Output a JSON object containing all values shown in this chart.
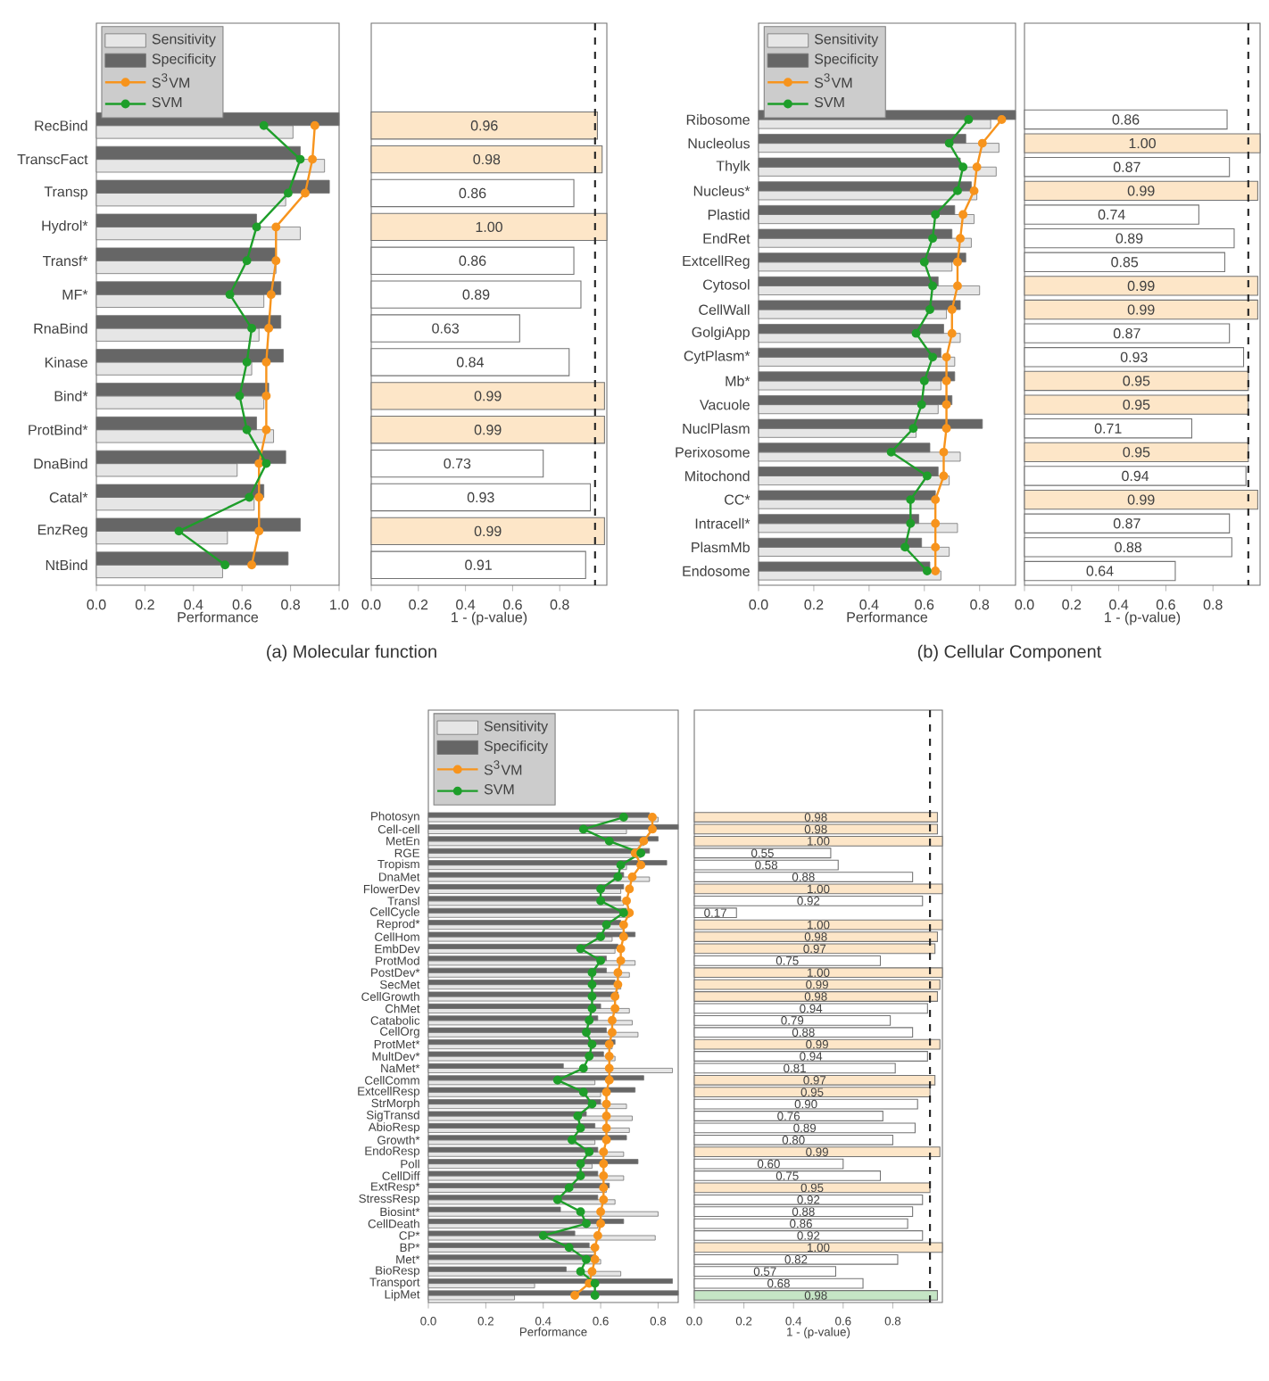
{
  "chart_data": [
    {
      "type": "bar",
      "orientation": "horizontal",
      "title": "(a) Molecular function",
      "xlabel": "Performance",
      "legend": "top left",
      "marker": "circle",
      "categories": [
        "RecBind",
        "TranscFact",
        "Transp",
        "Hydrol*",
        "Transf*",
        "MF*",
        "RnaBind",
        "Kinase",
        "Bind*",
        "ProtBind*",
        "DnaBind",
        "Catal*",
        "EnzReg",
        "NtBind"
      ],
      "xlim": [
        0,
        1.0
      ],
      "xticks": [
        {
          "value": 0,
          "label": "0.0"
        },
        {
          "value": 0.2,
          "label": "0.2"
        },
        {
          "value": 0.4,
          "label": "0.4"
        },
        {
          "value": 0.6,
          "label": "0.6"
        },
        {
          "value": 0.8,
          "label": "0.8"
        },
        {
          "value": 1.0,
          "label": "1.0"
        }
      ],
      "series": [
        {
          "name": "Sensitivity",
          "type": "bar",
          "color": "#e6e6e6",
          "values": [
            0.81,
            0.94,
            0.78,
            0.84,
            0.74,
            0.69,
            0.67,
            0.64,
            0.69,
            0.73,
            0.58,
            0.65,
            0.54,
            0.52
          ]
        },
        {
          "name": "Specificity",
          "type": "bar",
          "color": "#666666",
          "values": [
            1.0,
            0.84,
            0.96,
            0.66,
            0.74,
            0.76,
            0.76,
            0.77,
            0.71,
            0.66,
            0.78,
            0.69,
            0.84,
            0.79
          ]
        },
        {
          "name": "S$^{3}$VM",
          "type": "line",
          "color": "#f7941d",
          "values": [
            0.9,
            0.89,
            0.86,
            0.74,
            0.74,
            0.72,
            0.71,
            0.7,
            0.7,
            0.7,
            0.67,
            0.67,
            0.67,
            0.64
          ]
        },
        {
          "name": "SVM",
          "type": "line",
          "color": "#1e9e2a",
          "values": [
            0.69,
            0.84,
            0.79,
            0.66,
            0.62,
            0.55,
            0.64,
            0.62,
            0.59,
            0.62,
            0.7,
            0.63,
            0.34,
            0.53
          ]
        }
      ]
    },
    {
      "type": "bar",
      "orientation": "horizontal",
      "xlabel": "1 - (p-value)",
      "tick_labels": "x",
      "categories": [
        null,
        null,
        null,
        null,
        null,
        null,
        null,
        null,
        null,
        null,
        null,
        null,
        null,
        null
      ],
      "xlim": [
        0,
        1.0
      ],
      "xticks": [
        {
          "value": 0,
          "label": "0.0"
        },
        {
          "value": 0.2,
          "label": "0.2"
        },
        {
          "value": 0.4,
          "label": "0.4"
        },
        {
          "value": 0.6,
          "label": "0.6"
        },
        {
          "value": 0.8,
          "label": "0.8"
        }
      ],
      "values": [
        0.96,
        0.98,
        0.86,
        1.0,
        0.86,
        0.89,
        0.63,
        0.84,
        0.99,
        0.99,
        0.73,
        0.93,
        0.99,
        0.91
      ],
      "value_labels": [
        "0.96",
        "0.98",
        "0.86",
        "1.00",
        "0.86",
        "0.89",
        "0.63",
        "0.84",
        "0.99",
        "0.99",
        "0.73",
        "0.93",
        "0.99",
        "0.91"
      ],
      "colors": [
        "#fde6c8",
        "#fde6c8",
        "#ffffff",
        "#fde6c8",
        "#ffffff",
        "#ffffff",
        "#ffffff",
        "#ffffff",
        "#fde6c8",
        "#fde6c8",
        "#ffffff",
        "#ffffff",
        "#fde6c8",
        "#ffffff"
      ],
      "ref_lines": [
        {
          "axis": "x",
          "value": 0.95,
          "line_style": "dashed"
        }
      ]
    },
    {
      "type": "bar",
      "orientation": "horizontal",
      "title": "(b) Cellular Component",
      "xlabel": "Performance",
      "legend": "top left",
      "marker": "circle",
      "categories": [
        "Ribosome",
        "Nucleolus",
        "Thylk",
        "Nucleus*",
        "Plastid",
        "EndRet",
        "ExtcellReg",
        "Cytosol",
        "CellWall",
        "GolgiApp",
        "CytPlasm*",
        "Mb*",
        "Vacuole",
        "NuclPlasm",
        "Perixosome",
        "Mitochond",
        "CC*",
        "Intracell*",
        "PlasmMb",
        "Endosome"
      ],
      "xlim": [
        0,
        0.93
      ],
      "xticks": [
        {
          "value": 0,
          "label": "0.0"
        },
        {
          "value": 0.2,
          "label": "0.2"
        },
        {
          "value": 0.4,
          "label": "0.4"
        },
        {
          "value": 0.6,
          "label": "0.6"
        },
        {
          "value": 0.8,
          "label": "0.8"
        }
      ],
      "series": [
        {
          "name": "Sensitivity",
          "type": "bar",
          "color": "#e6e6e6",
          "values": [
            0.84,
            0.87,
            0.86,
            0.79,
            0.78,
            0.77,
            0.7,
            0.8,
            0.68,
            0.73,
            0.71,
            0.66,
            0.65,
            0.57,
            0.73,
            0.69,
            0.64,
            0.72,
            0.69,
            0.66
          ]
        },
        {
          "name": "Specificity",
          "type": "bar",
          "color": "#666666",
          "values": [
            0.93,
            0.75,
            0.73,
            0.77,
            0.71,
            0.7,
            0.75,
            0.65,
            0.73,
            0.67,
            0.66,
            0.71,
            0.7,
            0.81,
            0.62,
            0.65,
            0.64,
            0.58,
            0.59,
            0.62
          ]
        },
        {
          "name": "S$^{3}$VM",
          "type": "line",
          "color": "#f7941d",
          "values": [
            0.88,
            0.81,
            0.79,
            0.78,
            0.74,
            0.73,
            0.72,
            0.72,
            0.7,
            0.7,
            0.68,
            0.68,
            0.68,
            0.68,
            0.67,
            0.67,
            0.64,
            0.64,
            0.64,
            0.64
          ]
        },
        {
          "name": "SVM",
          "type": "line",
          "color": "#1e9e2a",
          "values": [
            0.76,
            0.69,
            0.74,
            0.72,
            0.64,
            0.63,
            0.6,
            0.63,
            0.62,
            0.57,
            0.63,
            0.6,
            0.59,
            0.56,
            0.48,
            0.61,
            0.55,
            0.55,
            0.53,
            0.61
          ]
        }
      ]
    },
    {
      "type": "bar",
      "orientation": "horizontal",
      "xlabel": "1 - (p-value)",
      "tick_labels": "x",
      "categories": [
        null,
        null,
        null,
        null,
        null,
        null,
        null,
        null,
        null,
        null,
        null,
        null,
        null,
        null,
        null,
        null,
        null,
        null,
        null,
        null
      ],
      "xlim": [
        0,
        1.0
      ],
      "xticks": [
        {
          "value": 0,
          "label": "0.0"
        },
        {
          "value": 0.2,
          "label": "0.2"
        },
        {
          "value": 0.4,
          "label": "0.4"
        },
        {
          "value": 0.6,
          "label": "0.6"
        },
        {
          "value": 0.8,
          "label": "0.8"
        }
      ],
      "values": [
        0.86,
        1.0,
        0.87,
        0.99,
        0.74,
        0.89,
        0.85,
        0.99,
        0.99,
        0.87,
        0.93,
        0.95,
        0.95,
        0.71,
        0.95,
        0.94,
        0.99,
        0.87,
        0.88,
        0.64
      ],
      "value_labels": [
        "0.86",
        "1.00",
        "0.87",
        "0.99",
        "0.74",
        "0.89",
        "0.85",
        "0.99",
        "0.99",
        "0.87",
        "0.93",
        "0.95",
        "0.95",
        "0.71",
        "0.95",
        "0.94",
        "0.99",
        "0.87",
        "0.88",
        "0.64"
      ],
      "colors": [
        "#ffffff",
        "#fde6c8",
        "#ffffff",
        "#fde6c8",
        "#ffffff",
        "#ffffff",
        "#ffffff",
        "#fde6c8",
        "#fde6c8",
        "#ffffff",
        "#ffffff",
        "#fde6c8",
        "#fde6c8",
        "#ffffff",
        "#fde6c8",
        "#ffffff",
        "#fde6c8",
        "#ffffff",
        "#ffffff",
        "#ffffff"
      ],
      "ref_lines": [
        {
          "axis": "x",
          "value": 0.95,
          "line_style": "dashed"
        }
      ]
    },
    {
      "type": "bar",
      "orientation": "horizontal",
      "xlabel": "Performance",
      "legend": "top left",
      "marker": "circle",
      "categories": [
        "Photosyn",
        "Cell-cell",
        "MetEn",
        "RGE",
        "Tropism",
        "DnaMet",
        "FlowerDev",
        "Transl",
        "CellCycle",
        "Reprod*",
        "CellHom",
        "EmbDev",
        "ProtMod",
        "PostDev*",
        "SecMet",
        "CellGrowth",
        "ChMet",
        "Catabolic",
        "CellOrg",
        "ProtMet*",
        "MultDev*",
        "NaMet*",
        "CellComm",
        "ExtcellResp",
        "StrMorph",
        "SigTransd",
        "AbioResp",
        "Growth*",
        "EndoResp",
        "Poll",
        "CellDiff",
        "ExtResp*",
        "StressResp",
        "Biosint*",
        "CellDeath",
        "CP*",
        "BP*",
        "Met*",
        "BioResp",
        "Transport",
        "LipMet"
      ],
      "xlim": [
        0,
        0.87
      ],
      "xticks": [
        {
          "value": 0,
          "label": "0.0"
        },
        {
          "value": 0.2,
          "label": "0.2"
        },
        {
          "value": 0.4,
          "label": "0.4"
        },
        {
          "value": 0.6,
          "label": "0.6"
        },
        {
          "value": 0.8,
          "label": "0.8"
        }
      ],
      "series": [
        {
          "name": "Sensitivity",
          "type": "bar",
          "color": "#e6e6e6",
          "values": [
            0.8,
            0.69,
            0.75,
            0.74,
            0.69,
            0.77,
            0.67,
            0.68,
            0.7,
            0.68,
            0.64,
            0.65,
            0.72,
            0.7,
            0.67,
            0.65,
            0.7,
            0.71,
            0.73,
            0.64,
            0.65,
            0.85,
            0.58,
            0.6,
            0.69,
            0.71,
            0.7,
            0.58,
            0.68,
            0.57,
            0.68,
            0.62,
            0.65,
            0.8,
            0.59,
            0.79,
            0.58,
            0.6,
            0.67,
            0.37,
            0.3
          ]
        },
        {
          "name": "Specificity",
          "type": "bar",
          "color": "#666666",
          "values": [
            0.77,
            0.87,
            0.8,
            0.77,
            0.83,
            0.68,
            0.68,
            0.67,
            0.69,
            0.67,
            0.72,
            0.66,
            0.62,
            0.62,
            0.65,
            0.66,
            0.6,
            0.59,
            0.62,
            0.65,
            0.61,
            0.47,
            0.75,
            0.72,
            0.6,
            0.55,
            0.58,
            0.69,
            0.59,
            0.73,
            0.59,
            0.63,
            0.59,
            0.46,
            0.68,
            0.51,
            0.56,
            0.58,
            0.48,
            0.85,
            0.87
          ]
        },
        {
          "name": "S$^{3}$VM",
          "type": "line",
          "color": "#f7941d",
          "values": [
            0.78,
            0.78,
            0.75,
            0.72,
            0.74,
            0.71,
            0.7,
            0.69,
            0.7,
            0.68,
            0.68,
            0.67,
            0.67,
            0.66,
            0.66,
            0.65,
            0.65,
            0.64,
            0.64,
            0.63,
            0.63,
            0.63,
            0.63,
            0.62,
            0.62,
            0.62,
            0.62,
            0.62,
            0.61,
            0.61,
            0.61,
            0.61,
            0.61,
            0.6,
            0.6,
            0.59,
            0.58,
            0.58,
            0.57,
            0.56,
            0.51
          ]
        },
        {
          "name": "SVM",
          "type": "line",
          "color": "#1e9e2a",
          "values": [
            0.68,
            0.54,
            0.63,
            0.74,
            0.67,
            0.66,
            0.6,
            0.6,
            0.68,
            0.62,
            0.6,
            0.53,
            0.6,
            0.57,
            0.57,
            0.57,
            0.57,
            0.56,
            0.55,
            0.57,
            0.56,
            0.54,
            0.45,
            0.54,
            0.57,
            0.52,
            0.53,
            0.5,
            0.56,
            0.53,
            0.53,
            0.49,
            0.45,
            0.53,
            0.55,
            0.4,
            0.49,
            0.55,
            0.53,
            0.58,
            0.58
          ]
        }
      ]
    },
    {
      "type": "bar",
      "orientation": "horizontal",
      "xlabel": "1 - (p-value)",
      "tick_labels": "x",
      "categories": [
        null,
        null,
        null,
        null,
        null,
        null,
        null,
        null,
        null,
        null,
        null,
        null,
        null,
        null,
        null,
        null,
        null,
        null,
        null,
        null,
        null,
        null,
        null,
        null,
        null,
        null,
        null,
        null,
        null,
        null,
        null,
        null,
        null,
        null,
        null,
        null,
        null,
        null,
        null,
        null,
        null
      ],
      "xlim": [
        0,
        1.0
      ],
      "xticks": [
        {
          "value": 0,
          "label": "0.0"
        },
        {
          "value": 0.2,
          "label": "0.2"
        },
        {
          "value": 0.4,
          "label": "0.4"
        },
        {
          "value": 0.6,
          "label": "0.6"
        },
        {
          "value": 0.8,
          "label": "0.8"
        }
      ],
      "values": [
        0.98,
        0.98,
        1.0,
        0.55,
        0.58,
        0.88,
        1.0,
        0.92,
        0.17,
        1.0,
        0.98,
        0.97,
        0.75,
        1.0,
        0.99,
        0.98,
        0.94,
        0.79,
        0.88,
        0.99,
        0.94,
        0.81,
        0.97,
        0.95,
        0.9,
        0.76,
        0.89,
        0.8,
        0.99,
        0.6,
        0.75,
        0.95,
        0.92,
        0.88,
        0.86,
        0.92,
        1.0,
        0.82,
        0.57,
        0.68,
        0.98
      ],
      "value_labels": [
        "0.98",
        "0.98",
        "1.00",
        "0.55",
        "0.58",
        "0.88",
        "1.00",
        "0.92",
        "0.17",
        "1.00",
        "0.98",
        "0.97",
        "0.75",
        "1.00",
        "0.99",
        "0.98",
        "0.94",
        "0.79",
        "0.88",
        "0.99",
        "0.94",
        "0.81",
        "0.97",
        "0.95",
        "0.90",
        "0.76",
        "0.89",
        "0.80",
        "0.99",
        "0.60",
        "0.75",
        "0.95",
        "0.92",
        "0.88",
        "0.86",
        "0.92",
        "1.00",
        "0.82",
        "0.57",
        "0.68",
        "0.98"
      ],
      "colors": [
        "#fde6c8",
        "#fde6c8",
        "#fde6c8",
        "#ffffff",
        "#ffffff",
        "#ffffff",
        "#fde6c8",
        "#ffffff",
        "#ffffff",
        "#fde6c8",
        "#fde6c8",
        "#fde6c8",
        "#ffffff",
        "#fde6c8",
        "#fde6c8",
        "#fde6c8",
        "#ffffff",
        "#ffffff",
        "#ffffff",
        "#fde6c8",
        "#ffffff",
        "#ffffff",
        "#fde6c8",
        "#fde6c8",
        "#ffffff",
        "#ffffff",
        "#ffffff",
        "#ffffff",
        "#fde6c8",
        "#ffffff",
        "#ffffff",
        "#fde6c8",
        "#ffffff",
        "#ffffff",
        "#ffffff",
        "#ffffff",
        "#fde6c8",
        "#ffffff",
        "#ffffff",
        "#ffffff",
        "#c5e5c5"
      ],
      "ref_lines": [
        {
          "axis": "x",
          "value": 0.95,
          "line_style": "dashed"
        }
      ]
    }
  ]
}
